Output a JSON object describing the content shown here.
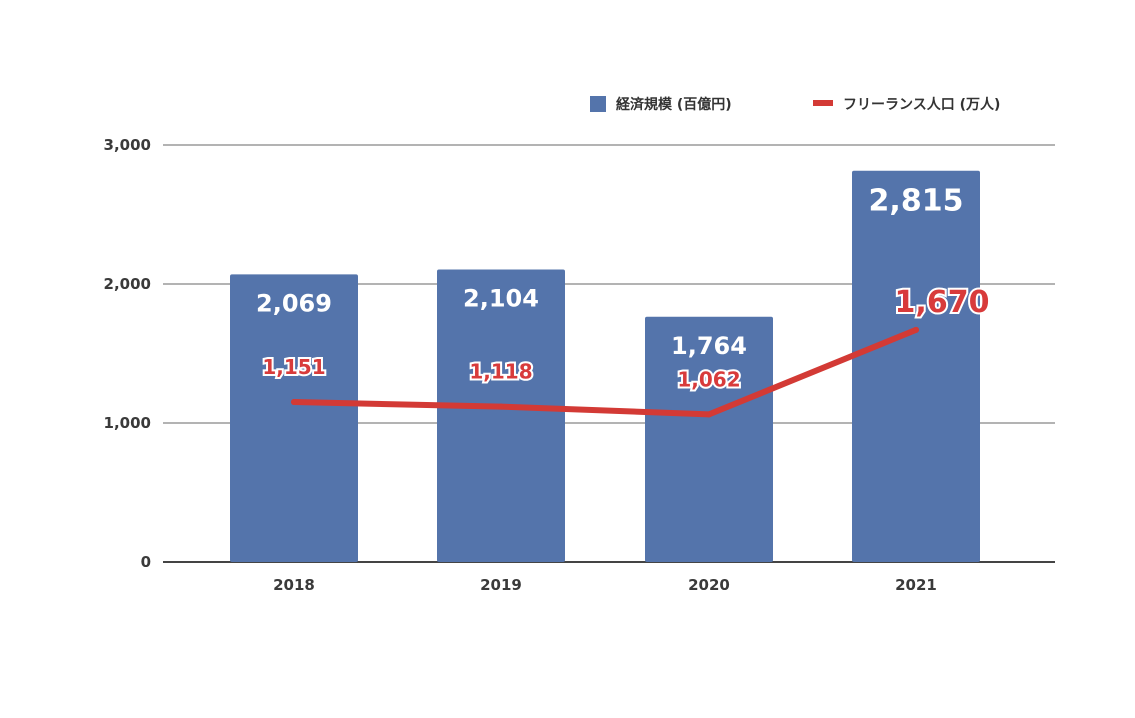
{
  "chart_data": {
    "type": "bar",
    "categories": [
      "2018",
      "2019",
      "2020",
      "2021"
    ],
    "series": [
      {
        "name": "経済規模 (百億円)",
        "type": "bar",
        "values": [
          2069,
          2104,
          1764,
          2815
        ],
        "labels": [
          "2,069",
          "2,104",
          "1,764",
          "2,815"
        ]
      },
      {
        "name": "フリーランス人口 (万人)",
        "type": "line",
        "values": [
          1151,
          1118,
          1062,
          1670
        ],
        "labels": [
          "1,151",
          "1,118",
          "1,062",
          "1,670"
        ]
      }
    ],
    "yticks": [
      "0",
      "1,000",
      "2,000",
      "3,000"
    ],
    "ylim": [
      0,
      3000
    ],
    "grid": true,
    "legend_position": "top-right",
    "colors": {
      "bar": "#5474ab",
      "line": "#d33a35"
    }
  }
}
